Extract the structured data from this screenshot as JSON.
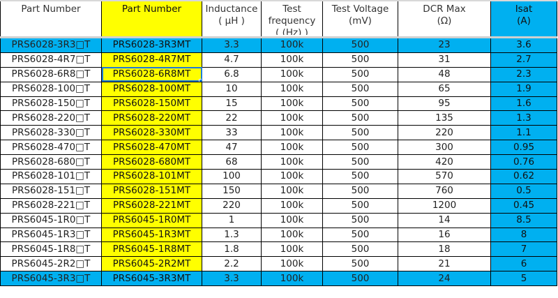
{
  "colors": {
    "yellow": "#ffff00",
    "blue": "#00b0f0"
  },
  "headers": [
    "Part Number",
    "Part Number",
    "Inductance\n( μH )",
    "Test\nfrequency\n( (Hz) )",
    "Test Voltage\n(mV)",
    "DCR Max\n(Ω)",
    "Isat\n(A)"
  ],
  "rows": [
    [
      "PRS6028-3R3□T",
      "PRS6028-3R3MT",
      "3.3",
      "100k",
      "500",
      "23",
      "3.6"
    ],
    [
      "PRS6028-4R7□T",
      "PRS6028-4R7MT",
      "4.7",
      "100k",
      "500",
      "31",
      "2.7"
    ],
    [
      "PRS6028-6R8□T",
      "PRS6028-6R8MT",
      "6.8",
      "100k",
      "500",
      "48",
      "2.3"
    ],
    [
      "PRS6028-100□T",
      "PRS6028-100MT",
      "10",
      "100k",
      "500",
      "65",
      "1.9"
    ],
    [
      "PRS6028-150□T",
      "PRS6028-150MT",
      "15",
      "100k",
      "500",
      "95",
      "1.6"
    ],
    [
      "PRS6028-220□T",
      "PRS6028-220MT",
      "22",
      "100k",
      "500",
      "135",
      "1.3"
    ],
    [
      "PRS6028-330□T",
      "PRS6028-330MT",
      "33",
      "100k",
      "500",
      "220",
      "1.1"
    ],
    [
      "PRS6028-470□T",
      "PRS6028-470MT",
      "47",
      "100k",
      "500",
      "300",
      "0.95"
    ],
    [
      "PRS6028-680□T",
      "PRS6028-680MT",
      "68",
      "100k",
      "500",
      "420",
      "0.76"
    ],
    [
      "PRS6028-101□T",
      "PRS6028-101MT",
      "100",
      "100k",
      "500",
      "570",
      "0.62"
    ],
    [
      "PRS6028-151□T",
      "PRS6028-151MT",
      "150",
      "100k",
      "500",
      "760",
      "0.5"
    ],
    [
      "PRS6028-221□T",
      "PRS6028-221MT",
      "220",
      "100k",
      "500",
      "1200",
      "0.45"
    ],
    [
      "PRS6045-1R0□T",
      "PRS6045-1R0MT",
      "1",
      "100k",
      "500",
      "14",
      "8.5"
    ],
    [
      "PRS6045-1R3□T",
      "PRS6045-1R3MT",
      "1.3",
      "100k",
      "500",
      "16",
      "8"
    ],
    [
      "PRS6045-1R8□T",
      "PRS6045-1R8MT",
      "1.8",
      "100k",
      "500",
      "18",
      "7"
    ],
    [
      "PRS6045-2R2□T",
      "PRS6045-2R2MT",
      "2.2",
      "100k",
      "500",
      "21",
      "6"
    ],
    [
      "PRS6045-3R3□T",
      "PRS6045-3R3MT",
      "3.3",
      "100k",
      "500",
      "24",
      "5"
    ]
  ],
  "highlighted_rows": [
    0,
    16
  ],
  "selected_cell": {
    "row": 2,
    "col": 1
  }
}
